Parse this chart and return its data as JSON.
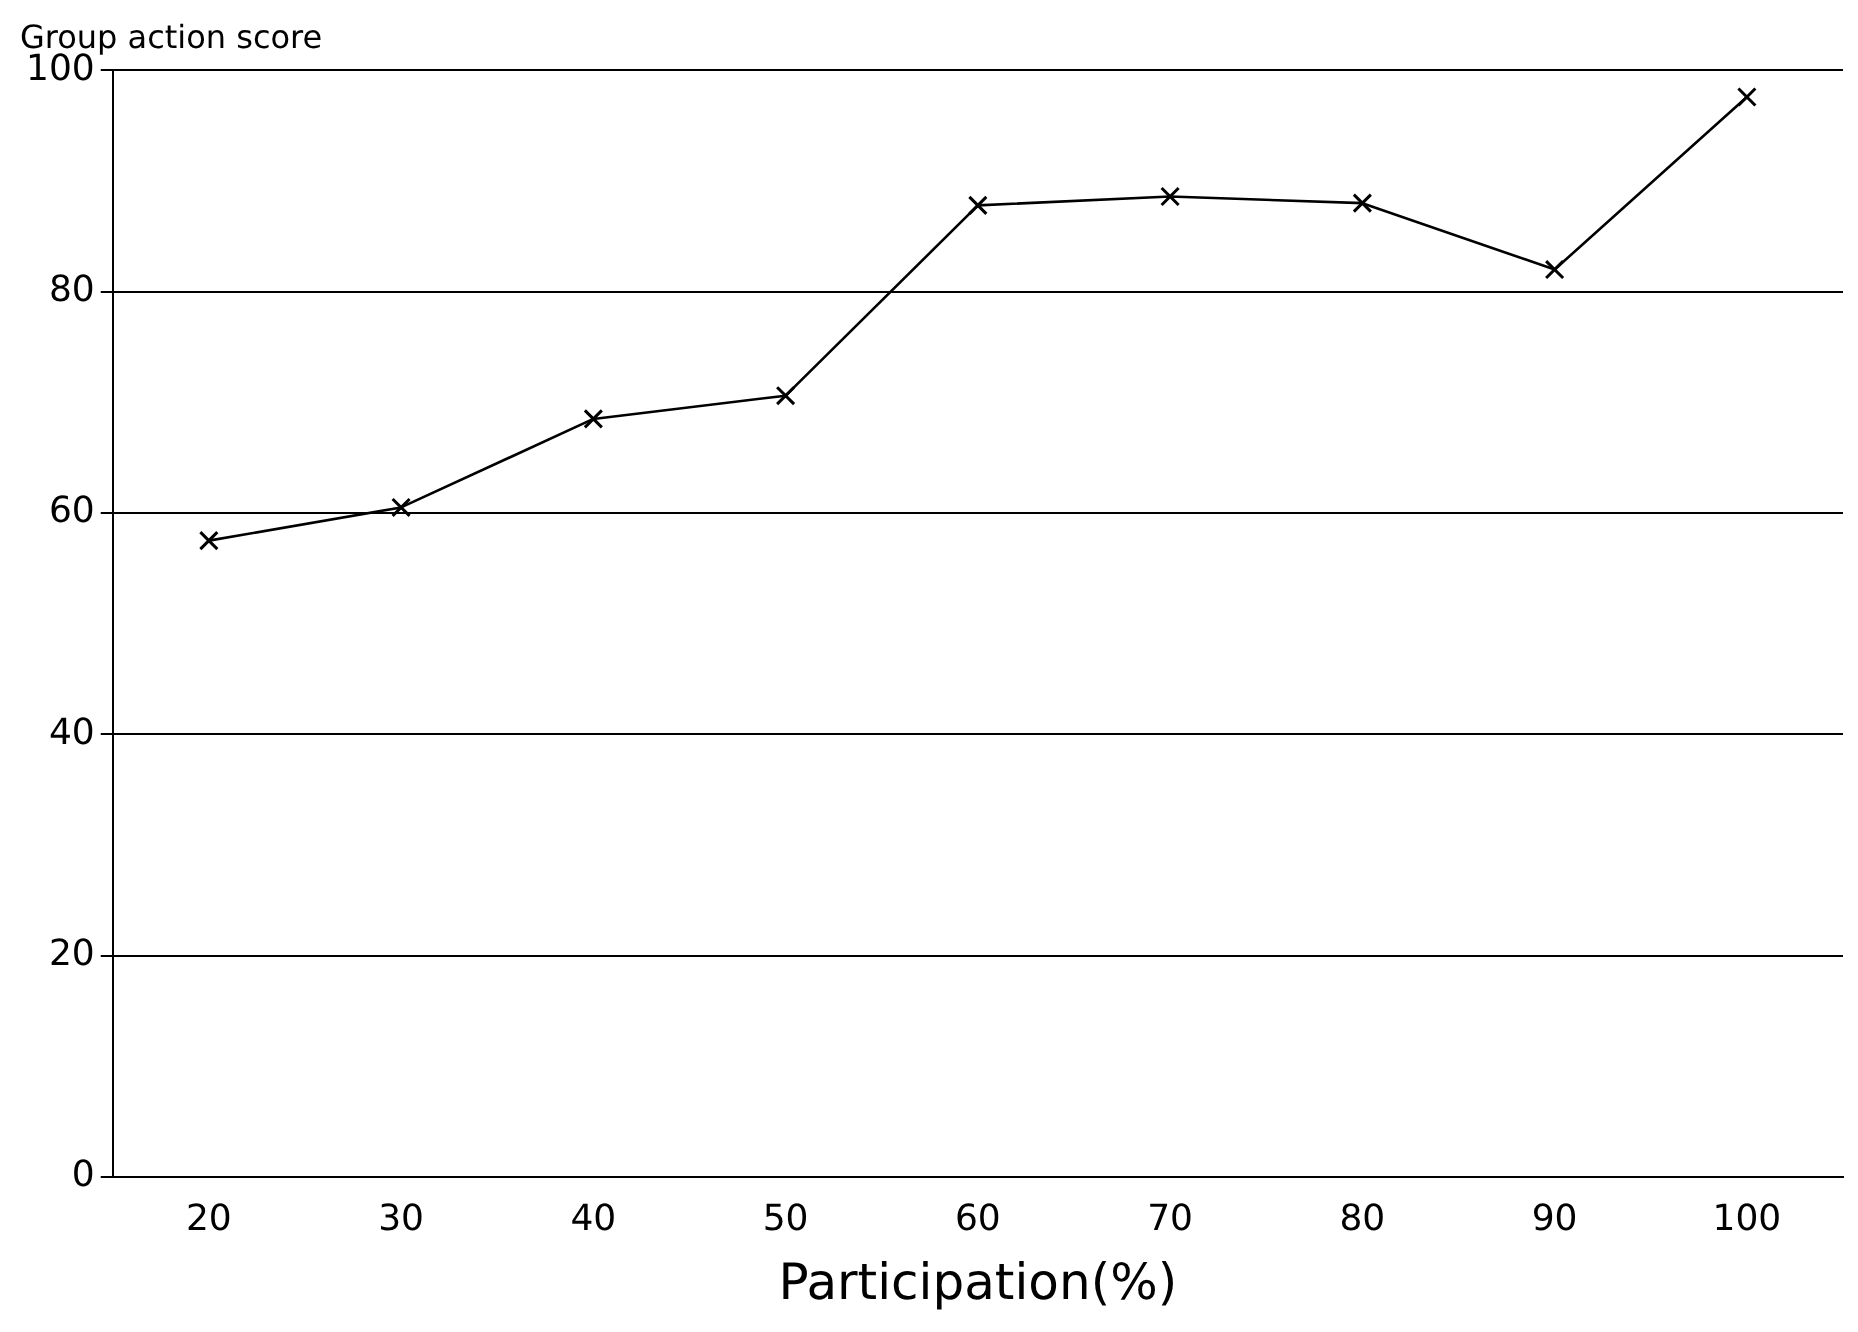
{
  "chart_data": {
    "type": "line",
    "ylabel": "Group action score",
    "xlabel": "Participation(%)",
    "categories": [
      "20",
      "30",
      "40",
      "50",
      "60",
      "70",
      "80",
      "90",
      "100"
    ],
    "series": [
      {
        "color": "#000000",
        "values": [
          57.5,
          60.5,
          68.5,
          70.6,
          87.8,
          88.6,
          88.0,
          82.0,
          97.6
        ]
      }
    ],
    "ylim": [
      0,
      100
    ],
    "yticks": [
      0,
      20,
      40,
      60,
      80,
      100
    ],
    "grid": "y",
    "marker": "cross",
    "line_style": "solid",
    "legend": false
  }
}
